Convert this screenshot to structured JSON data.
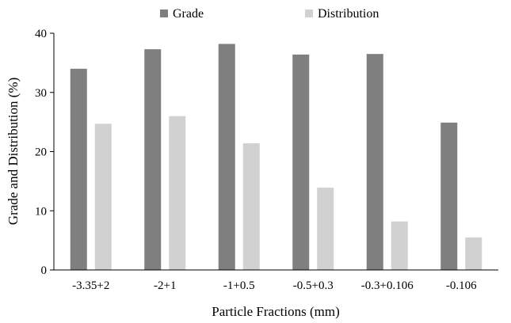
{
  "chart_data": {
    "type": "bar",
    "categories": [
      "-3.35+2",
      "-2+1",
      "-1+0.5",
      "-0.5+0.3",
      "-0.3+0.106",
      "-0.106"
    ],
    "series": [
      {
        "name": "Grade",
        "values": [
          34.0,
          37.3,
          38.2,
          36.4,
          36.5,
          24.9
        ],
        "color": "#7f7f7f"
      },
      {
        "name": "Distribution",
        "values": [
          24.7,
          26.0,
          21.4,
          13.9,
          8.2,
          5.5
        ],
        "color": "#d1d1d1"
      }
    ],
    "xlabel": "Particle Fractions (mm)",
    "ylabel": "Grade and Distribution (%)",
    "ylim": [
      0,
      40
    ],
    "yticks": [
      0,
      10,
      20,
      30,
      40
    ],
    "grid": false,
    "legend_position": "top"
  }
}
